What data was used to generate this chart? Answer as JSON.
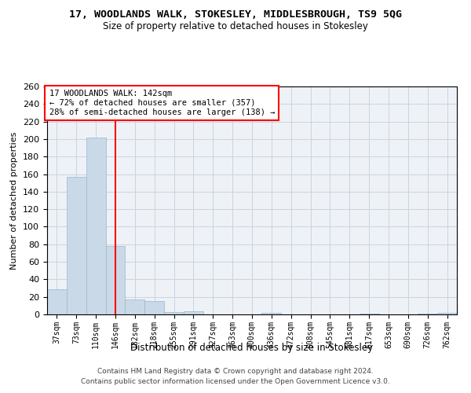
{
  "title": "17, WOODLANDS WALK, STOKESLEY, MIDDLESBROUGH, TS9 5QG",
  "subtitle": "Size of property relative to detached houses in Stokesley",
  "xlabel": "Distribution of detached houses by size in Stokesley",
  "ylabel": "Number of detached properties",
  "bar_color": "#c9d9e8",
  "bar_edge_color": "#9ab5ca",
  "grid_color": "#c8d4e0",
  "background_color": "#eef2f7",
  "bin_labels": [
    "37sqm",
    "73sqm",
    "110sqm",
    "146sqm",
    "182sqm",
    "218sqm",
    "255sqm",
    "291sqm",
    "327sqm",
    "363sqm",
    "400sqm",
    "436sqm",
    "472sqm",
    "508sqm",
    "545sqm",
    "581sqm",
    "617sqm",
    "653sqm",
    "690sqm",
    "726sqm",
    "762sqm"
  ],
  "bar_values": [
    29,
    157,
    202,
    78,
    17,
    15,
    3,
    4,
    0,
    0,
    0,
    2,
    0,
    0,
    0,
    0,
    1,
    0,
    0,
    1,
    2
  ],
  "vline_x": 3,
  "annotation_line1": "17 WOODLANDS WALK: 142sqm",
  "annotation_line2": "← 72% of detached houses are smaller (357)",
  "annotation_line3": "28% of semi-detached houses are larger (138) →",
  "annotation_box_color": "white",
  "annotation_box_edge_color": "red",
  "vline_color": "red",
  "ylim": [
    0,
    260
  ],
  "yticks": [
    0,
    20,
    40,
    60,
    80,
    100,
    120,
    140,
    160,
    180,
    200,
    220,
    240,
    260
  ],
  "footer_line1": "Contains HM Land Registry data © Crown copyright and database right 2024.",
  "footer_line2": "Contains public sector information licensed under the Open Government Licence v3.0."
}
